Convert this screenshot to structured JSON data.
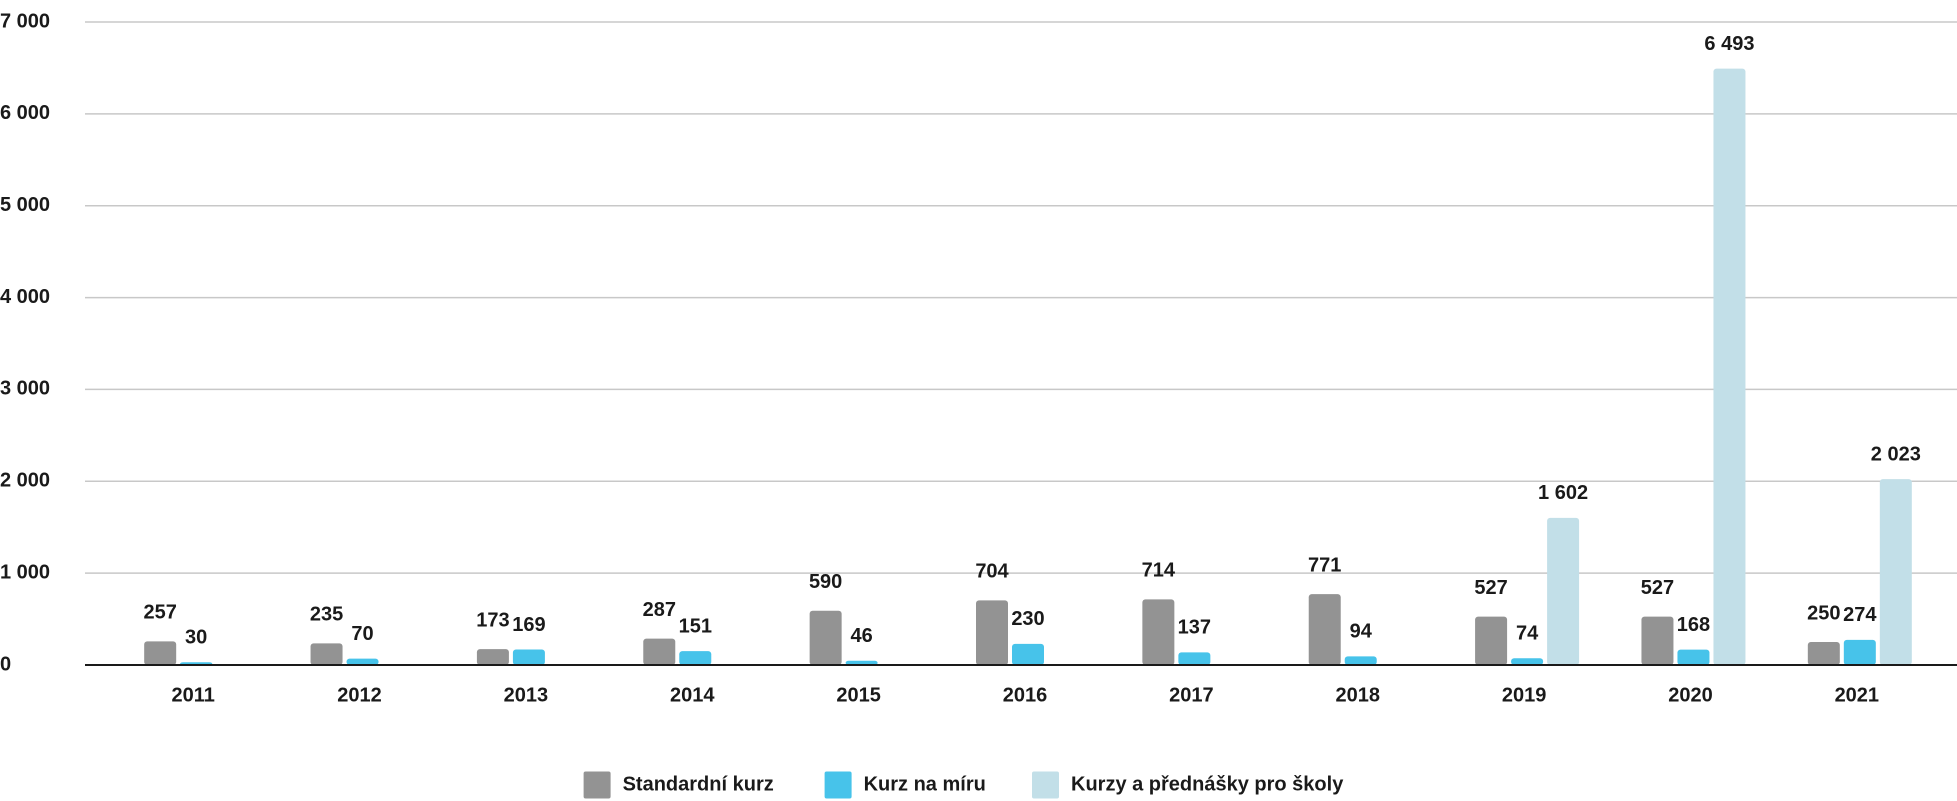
{
  "chart_data": {
    "type": "bar",
    "categories": [
      "2011",
      "2012",
      "2013",
      "2014",
      "2015",
      "2016",
      "2017",
      "2018",
      "2019",
      "2020",
      "2021"
    ],
    "series": [
      {
        "name": "Standardní kurz",
        "color": "#939393",
        "values": [
          257,
          235,
          173,
          287,
          590,
          704,
          714,
          771,
          527,
          527,
          250
        ]
      },
      {
        "name": "Kurz na míru",
        "color": "#47c3ea",
        "values": [
          30,
          70,
          169,
          151,
          46,
          230,
          137,
          94,
          74,
          168,
          274
        ]
      },
      {
        "name": "Kurzy a přednášky pro školy",
        "color": "#c2dfe8",
        "values": [
          null,
          null,
          null,
          null,
          null,
          null,
          null,
          null,
          1602,
          6493,
          2023
        ],
        "value_labels": [
          null,
          null,
          null,
          null,
          null,
          null,
          null,
          null,
          "1 602",
          "6 493",
          "2 023"
        ]
      }
    ],
    "ylim": [
      0,
      7000
    ],
    "yticks": [
      0,
      {
        "value": 1000,
        "label": "1 000"
      },
      {
        "value": 2000,
        "label": "2 000"
      },
      {
        "value": 3000,
        "label": "3 000"
      },
      {
        "value": 4000,
        "label": "4 000"
      },
      {
        "value": 5000,
        "label": "5 000"
      },
      {
        "value": 6000,
        "label": "6 000"
      },
      {
        "value": 7000,
        "label": "7 000"
      }
    ],
    "grid": true,
    "legend": "bottom"
  }
}
